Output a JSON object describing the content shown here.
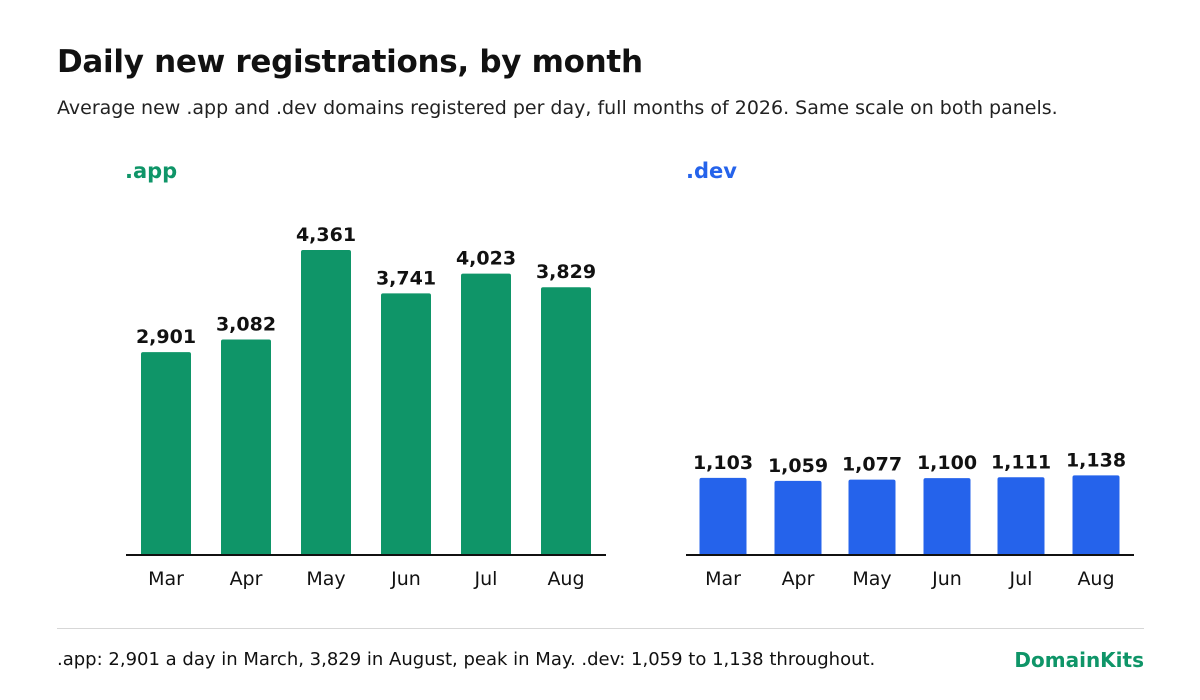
{
  "header": {
    "title": "Daily new registrations, by month",
    "subtitle": "Average new .app and .dev domains registered per day, full months of 2026. Same scale on both panels."
  },
  "panels": {
    "app": {
      "label": ".app"
    },
    "dev": {
      "label": ".dev"
    }
  },
  "footer": {
    "note": ".app: 2,901 a day in March, 3,829 in August, peak in May. .dev: 1,059 to 1,138 throughout.",
    "brand": "DomainKits"
  },
  "colors": {
    "app": "#0f9568",
    "dev": "#2563eb",
    "axis": "#111111"
  },
  "chart_data": [
    {
      "type": "bar",
      "title": ".app",
      "categories": [
        "Mar",
        "Apr",
        "May",
        "Jun",
        "Jul",
        "Aug"
      ],
      "values": [
        2901,
        3082,
        4361,
        3741,
        4023,
        3829
      ],
      "value_labels": [
        "2,901",
        "3,082",
        "4,361",
        "3,741",
        "4,023",
        "3,829"
      ],
      "xlabel": "",
      "ylabel": "",
      "ylim": [
        0,
        4361
      ],
      "grid": false,
      "color": "#0f9568"
    },
    {
      "type": "bar",
      "title": ".dev",
      "categories": [
        "Mar",
        "Apr",
        "May",
        "Jun",
        "Jul",
        "Aug"
      ],
      "values": [
        1103,
        1059,
        1077,
        1100,
        1111,
        1138
      ],
      "value_labels": [
        "1,103",
        "1,059",
        "1,077",
        "1,100",
        "1,111",
        "1,138"
      ],
      "xlabel": "",
      "ylabel": "",
      "ylim": [
        0,
        4361
      ],
      "grid": false,
      "color": "#2563eb"
    }
  ]
}
